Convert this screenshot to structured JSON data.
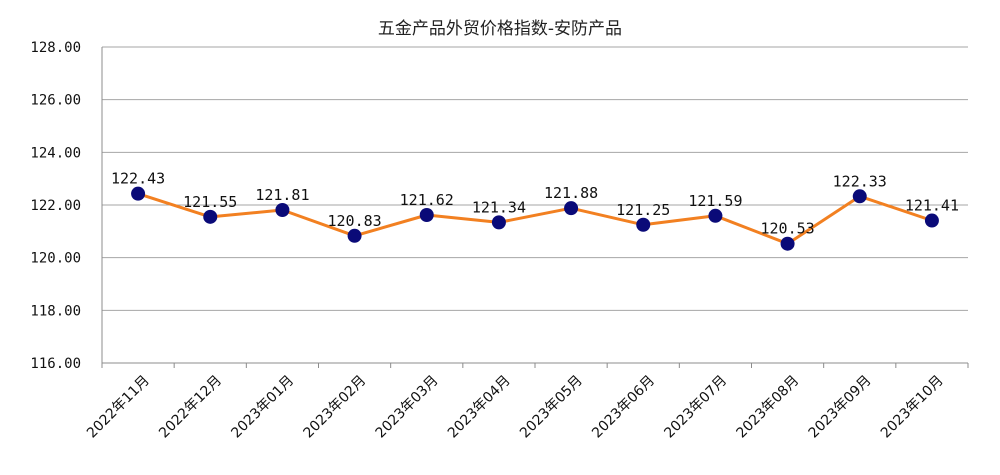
{
  "chart_data": {
    "type": "line",
    "title": "五金产品外贸价格指数-安防产品",
    "xlabel": "",
    "ylabel": "",
    "categories": [
      "2022年11月",
      "2022年12月",
      "2023年01月",
      "2023年02月",
      "2023年03月",
      "2023年04月",
      "2023年05月",
      "2023年06月",
      "2023年07月",
      "2023年08月",
      "2023年09月",
      "2023年10月"
    ],
    "series": [
      {
        "values": [
          122.43,
          121.55,
          121.81,
          120.83,
          121.62,
          121.34,
          121.88,
          121.25,
          121.59,
          120.53,
          122.33,
          121.41
        ]
      }
    ],
    "data_labels": [
      "122.43",
      "121.55",
      "121.81",
      "120.83",
      "121.62",
      "121.34",
      "121.88",
      "121.25",
      "121.59",
      "120.53",
      "122.33",
      "121.41"
    ],
    "ylim": [
      116,
      128
    ],
    "yticks": [
      "116.00",
      "118.00",
      "120.00",
      "122.00",
      "124.00",
      "126.00",
      "128.00"
    ],
    "grid": true,
    "legend": "none",
    "colors": {
      "line": "#f28021",
      "marker": "#0a0a78",
      "grid": "#a6a6a6",
      "axis": "#8c8c8c",
      "text": "#111111"
    }
  }
}
